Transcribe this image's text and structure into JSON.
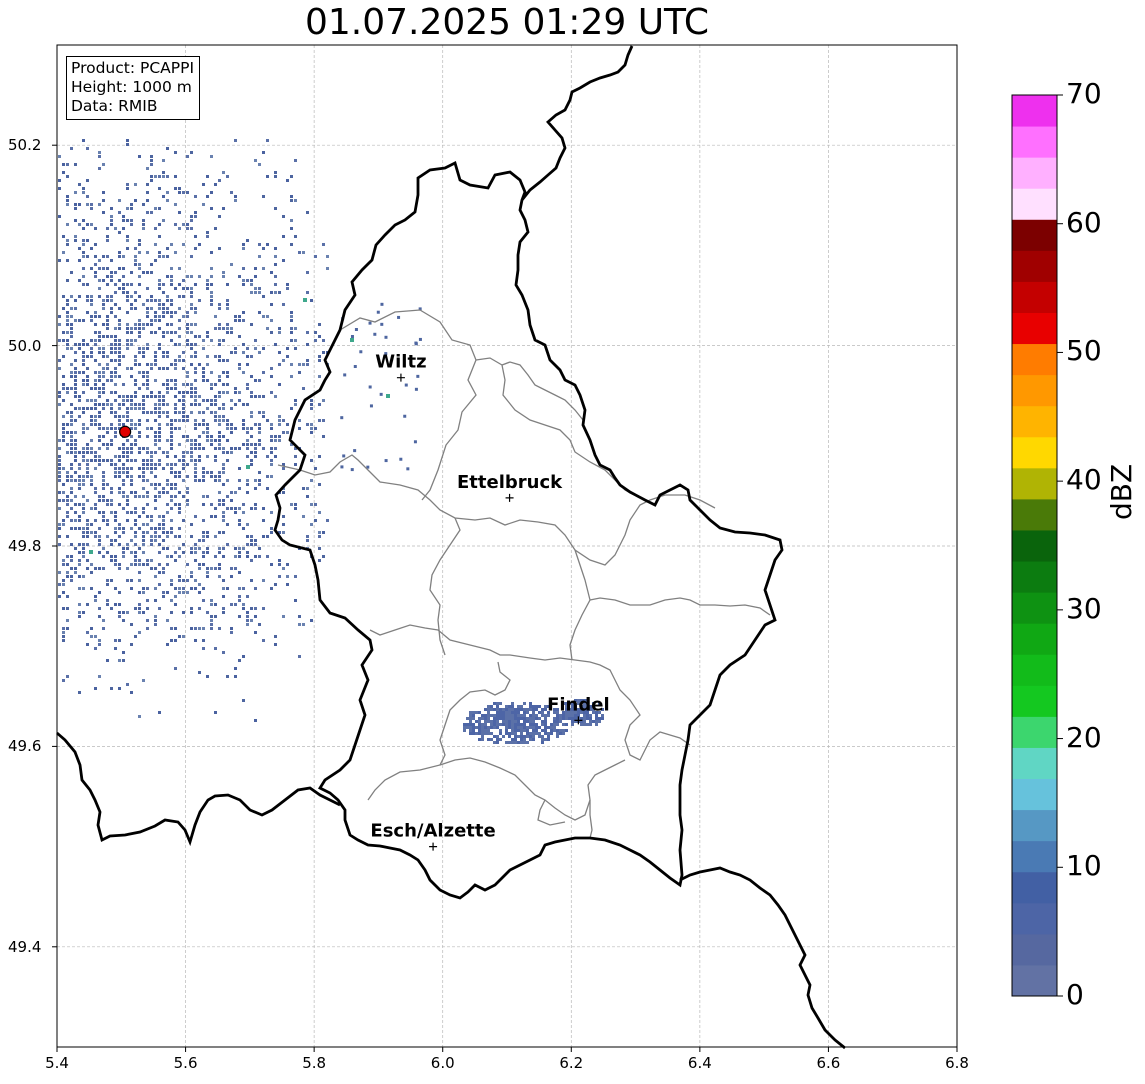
{
  "title": "01.07.2025 01:29 UTC",
  "info": {
    "product": "Product: PCAPPI",
    "height": "Height: 1000 m",
    "data": "Data: RMIB"
  },
  "map": {
    "lon_range": [
      5.4,
      6.8
    ],
    "lat_range": [
      49.3,
      50.3
    ],
    "x_ticks": [
      "5.4",
      "5.6",
      "5.8",
      "6.0",
      "6.2",
      "6.4",
      "6.6",
      "6.8"
    ],
    "y_ticks": [
      "49.4",
      "49.6",
      "49.8",
      "50.0",
      "50.2"
    ],
    "grid": true,
    "cities": [
      {
        "name": "Wiltz",
        "lon": 5.935,
        "lat": 49.968
      },
      {
        "name": "Ettelbruck",
        "lon": 6.104,
        "lat": 49.848
      },
      {
        "name": "Findel",
        "lon": 6.211,
        "lat": 49.626
      },
      {
        "name": "Esch/Alzette",
        "lon": 5.985,
        "lat": 49.5
      }
    ],
    "radar_site": {
      "lon": 5.506,
      "lat": 49.914,
      "color": "#e00000"
    },
    "border_color": "#000000",
    "canton_color": "#808080"
  },
  "colorbar": {
    "label": "dBZ",
    "ticks": [
      "0",
      "10",
      "20",
      "30",
      "40",
      "50",
      "60",
      "70"
    ],
    "range": [
      0,
      70
    ],
    "colors": [
      "#6272a4",
      "#5668a0",
      "#4d65a6",
      "#4260a4",
      "#4a7ab4",
      "#5698c4",
      "#66c2dc",
      "#60d6c4",
      "#3cd66e",
      "#14c820",
      "#12bb1a",
      "#10a814",
      "#0e9212",
      "#0c7c10",
      "#0a640c",
      "#4a7a08",
      "#b0b404",
      "#ffd800",
      "#ffb400",
      "#ff9800",
      "#ff7c00",
      "#e80000",
      "#c40000",
      "#a00000",
      "#7c0000",
      "#ffe0ff",
      "#ffb0ff",
      "#ff70ff",
      "#ee30ee"
    ]
  }
}
